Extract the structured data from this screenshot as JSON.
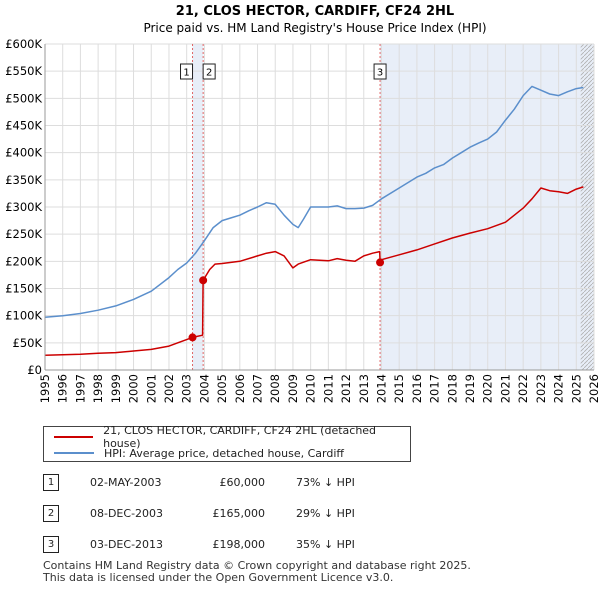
{
  "chart_data": {
    "type": "line",
    "title": "21, CLOS HECTOR, CARDIFF, CF24 2HL",
    "subtitle": "Price paid vs. HM Land Registry's House Price Index (HPI)",
    "xlim": [
      1995,
      2026
    ],
    "ylim": [
      0,
      600000
    ],
    "x_ticks": [
      1995,
      1996,
      1997,
      1998,
      1999,
      2000,
      2001,
      2002,
      2003,
      2004,
      2005,
      2006,
      2007,
      2008,
      2009,
      2010,
      2011,
      2012,
      2013,
      2014,
      2015,
      2016,
      2017,
      2018,
      2019,
      2020,
      2021,
      2022,
      2023,
      2024,
      2025,
      2026
    ],
    "y_ticks": [
      0,
      50000,
      100000,
      150000,
      200000,
      250000,
      300000,
      350000,
      400000,
      450000,
      500000,
      550000,
      600000
    ],
    "y_tick_labels": [
      "£0",
      "£50K",
      "£100K",
      "£150K",
      "£200K",
      "£250K",
      "£300K",
      "£350K",
      "£400K",
      "£450K",
      "£500K",
      "£550K",
      "£600K"
    ],
    "shaded_regions": [
      {
        "from": 2003.33,
        "to": 2003.93
      },
      {
        "from": 2013.92,
        "to": 2026
      }
    ],
    "hatch_from": 2025.25,
    "series": [
      {
        "name": "21, CLOS HECTOR, CARDIFF, CF24 2HL (detached house)",
        "color": "#cc0000",
        "x": [
          1995,
          1996,
          1997,
          1998,
          1999,
          2000,
          2001,
          2002,
          2002.5,
          2003.33,
          2003.9,
          2003.93,
          2004.3,
          2004.6,
          2005,
          2006,
          2007,
          2007.5,
          2008,
          2008.5,
          2009,
          2009.3,
          2010,
          2011,
          2011.5,
          2012,
          2012.5,
          2013,
          2013.5,
          2013.9,
          2013.92,
          2014,
          2015,
          2016,
          2017,
          2018,
          2019,
          2020,
          2021,
          2021.5,
          2022,
          2022.5,
          2023,
          2023.5,
          2024,
          2024.5,
          2025,
          2025.4
        ],
        "y": [
          27000,
          28000,
          29000,
          31000,
          32000,
          35000,
          38000,
          44000,
          50000,
          60000,
          64000,
          165000,
          185000,
          195000,
          196000,
          200000,
          210000,
          215000,
          218000,
          210000,
          188000,
          195000,
          203000,
          201000,
          205000,
          202000,
          200000,
          210000,
          215000,
          218000,
          198000,
          203000,
          212000,
          221000,
          232000,
          243000,
          252000,
          260000,
          272000,
          285000,
          298000,
          315000,
          335000,
          330000,
          328000,
          325000,
          333000,
          337000
        ]
      },
      {
        "name": "HPI: Average price, detached house, Cardiff",
        "color": "#5b8fcc",
        "x": [
          1995,
          1996,
          1997,
          1998,
          1999,
          2000,
          2001,
          2002,
          2002.5,
          2003,
          2003.5,
          2004,
          2004.5,
          2005,
          2005.5,
          2006,
          2006.5,
          2007,
          2007.5,
          2008,
          2008.5,
          2009,
          2009.3,
          2009.6,
          2010,
          2011,
          2011.5,
          2012,
          2012.5,
          2013,
          2013.5,
          2014,
          2015,
          2016,
          2016.5,
          2017,
          2017.5,
          2018,
          2018.5,
          2019,
          2019.5,
          2020,
          2020.5,
          2021,
          2021.5,
          2022,
          2022.5,
          2023,
          2023.5,
          2024,
          2024.5,
          2025,
          2025.4
        ],
        "y": [
          97000,
          100000,
          104000,
          110000,
          118000,
          130000,
          145000,
          170000,
          185000,
          197000,
          215000,
          238000,
          262000,
          275000,
          280000,
          285000,
          293000,
          300000,
          308000,
          305000,
          285000,
          268000,
          262000,
          278000,
          300000,
          300000,
          302000,
          297000,
          297000,
          298000,
          303000,
          315000,
          335000,
          355000,
          362000,
          372000,
          378000,
          390000,
          400000,
          410000,
          418000,
          425000,
          438000,
          460000,
          480000,
          505000,
          522000,
          515000,
          508000,
          505000,
          512000,
          518000,
          520000
        ]
      }
    ],
    "markers": [
      {
        "label": "1",
        "x": 2003.33,
        "y": 60000
      },
      {
        "label": "2",
        "x": 2003.93,
        "y": 165000
      },
      {
        "label": "3",
        "x": 2013.92,
        "y": 198000
      }
    ]
  },
  "legend": {
    "items": [
      {
        "label": "21, CLOS HECTOR, CARDIFF, CF24 2HL (detached house)",
        "color": "#cc0000"
      },
      {
        "label": "HPI: Average price, detached house, Cardiff",
        "color": "#5b8fcc"
      }
    ]
  },
  "transactions": [
    {
      "num": "1",
      "date": "02-MAY-2003",
      "price": "£60,000",
      "hpi": "73% ↓ HPI"
    },
    {
      "num": "2",
      "date": "08-DEC-2003",
      "price": "£165,000",
      "hpi": "29% ↓ HPI"
    },
    {
      "num": "3",
      "date": "03-DEC-2013",
      "price": "£198,000",
      "hpi": "35% ↓ HPI"
    }
  ],
  "footer": {
    "line1": "Contains HM Land Registry data © Crown copyright and database right 2025.",
    "line2": "This data is licensed under the Open Government Licence v3.0."
  }
}
